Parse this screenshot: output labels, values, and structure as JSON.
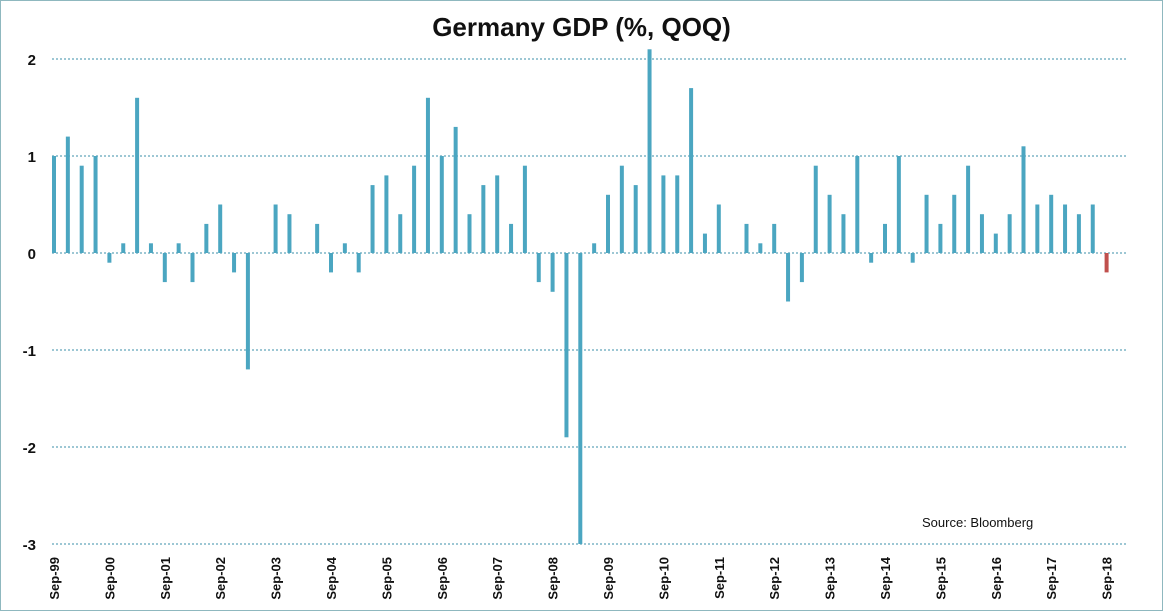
{
  "chart_data": {
    "type": "bar",
    "title": "Germany GDP (%, QOQ)",
    "source": "Source:  Bloomberg",
    "xlabel": "",
    "ylabel": "",
    "ylim": [
      -3,
      2
    ],
    "yticks": [
      "2",
      "1",
      "0",
      "-1",
      "-2",
      "-3"
    ],
    "grid": true,
    "legend": "none",
    "tick_labels": [
      "Sep-99",
      "Sep-00",
      "Sep-01",
      "Sep-02",
      "Sep-03",
      "Sep-04",
      "Sep-05",
      "Sep-06",
      "Sep-07",
      "Sep-08",
      "Sep-09",
      "Sep-10",
      "Sep-11",
      "Sep-12",
      "Sep-13",
      "Sep-14",
      "Sep-15",
      "Sep-16",
      "Sep-17",
      "Sep-18"
    ],
    "tick_every": 4,
    "colors": {
      "bar": "#4ba6c1",
      "last_bar": "#c0504d",
      "grid": "#3b8fa8"
    },
    "values": [
      1.0,
      1.2,
      0.9,
      1.0,
      -0.1,
      0.1,
      1.6,
      0.1,
      -0.3,
      0.1,
      -0.3,
      0.3,
      0.5,
      -0.2,
      -1.2,
      0.0,
      0.5,
      0.4,
      0.0,
      0.3,
      -0.2,
      0.1,
      -0.2,
      0.7,
      0.8,
      0.4,
      0.9,
      1.6,
      1.0,
      1.3,
      0.4,
      0.7,
      0.8,
      0.3,
      0.9,
      -0.3,
      -0.4,
      -1.9,
      -3.0,
      0.1,
      0.6,
      0.9,
      0.7,
      2.1,
      0.8,
      0.8,
      1.7,
      0.2,
      0.5,
      0.0,
      0.3,
      0.1,
      0.3,
      -0.5,
      -0.3,
      0.9,
      0.6,
      0.4,
      1.0,
      -0.1,
      0.3,
      1.0,
      -0.1,
      0.6,
      0.3,
      0.6,
      0.9,
      0.4,
      0.2,
      0.4,
      1.1,
      0.5,
      0.6,
      0.5,
      0.4,
      0.5,
      -0.2
    ]
  }
}
